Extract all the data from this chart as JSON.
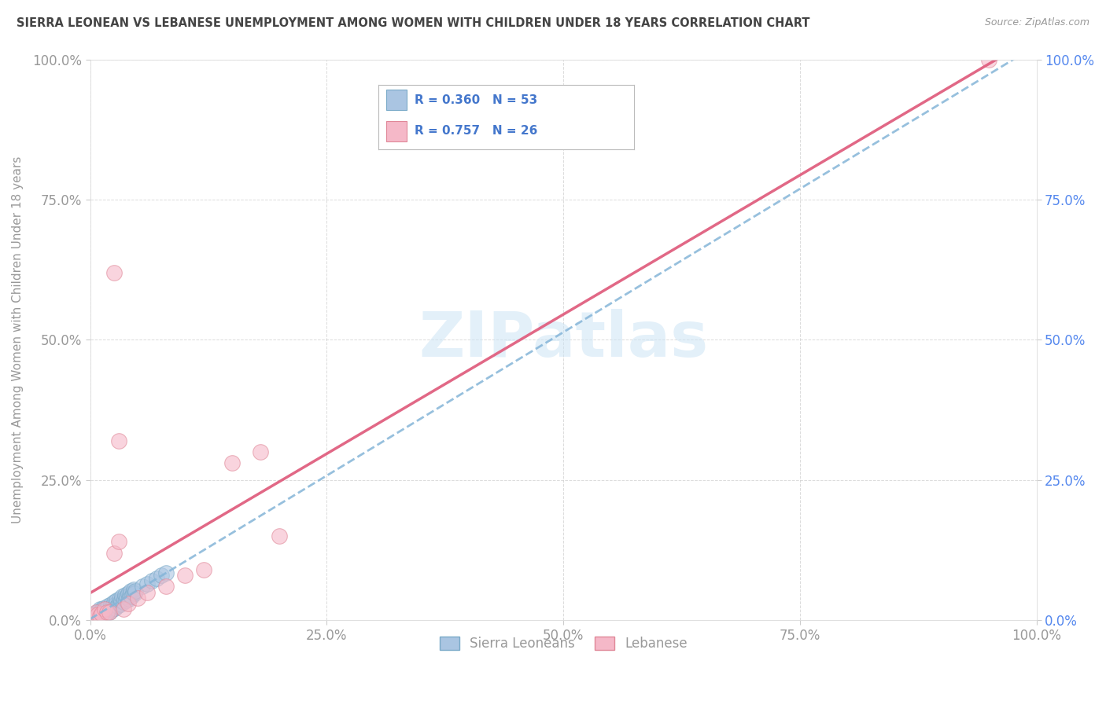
{
  "title": "SIERRA LEONEAN VS LEBANESE UNEMPLOYMENT AMONG WOMEN WITH CHILDREN UNDER 18 YEARS CORRELATION CHART",
  "source": "Source: ZipAtlas.com",
  "ylabel": "Unemployment Among Women with Children Under 18 years",
  "legend_entries": [
    {
      "label": "Sierra Leoneans",
      "R": 0.36,
      "N": 53,
      "color": "#aac5e2",
      "edge": "#7aaac8"
    },
    {
      "label": "Lebanese",
      "R": 0.757,
      "N": 26,
      "color": "#f5b8c8",
      "edge": "#e08898"
    }
  ],
  "watermark": "ZIPatlas",
  "sl_scatter_x": [
    0.002,
    0.003,
    0.004,
    0.005,
    0.006,
    0.007,
    0.008,
    0.009,
    0.01,
    0.011,
    0.012,
    0.013,
    0.014,
    0.015,
    0.016,
    0.017,
    0.018,
    0.019,
    0.02,
    0.021,
    0.022,
    0.023,
    0.024,
    0.025,
    0.026,
    0.027,
    0.028,
    0.029,
    0.03,
    0.031,
    0.032,
    0.033,
    0.034,
    0.035,
    0.036,
    0.037,
    0.038,
    0.039,
    0.04,
    0.041,
    0.042,
    0.043,
    0.044,
    0.045,
    0.046,
    0.047,
    0.048,
    0.055,
    0.06,
    0.065,
    0.07,
    0.075,
    0.08
  ],
  "sl_scatter_y": [
    0.005,
    0.01,
    0.008,
    0.012,
    0.006,
    0.015,
    0.01,
    0.008,
    0.02,
    0.012,
    0.018,
    0.014,
    0.022,
    0.016,
    0.012,
    0.02,
    0.018,
    0.025,
    0.015,
    0.022,
    0.028,
    0.018,
    0.025,
    0.032,
    0.022,
    0.028,
    0.035,
    0.025,
    0.03,
    0.038,
    0.028,
    0.035,
    0.042,
    0.032,
    0.038,
    0.045,
    0.035,
    0.042,
    0.048,
    0.038,
    0.045,
    0.052,
    0.042,
    0.05,
    0.055,
    0.048,
    0.052,
    0.06,
    0.065,
    0.07,
    0.075,
    0.08,
    0.085
  ],
  "lb_scatter_x": [
    0.002,
    0.003,
    0.004,
    0.005,
    0.006,
    0.008,
    0.01,
    0.012,
    0.015,
    0.018,
    0.02,
    0.025,
    0.03,
    0.035,
    0.04,
    0.05,
    0.06,
    0.08,
    0.1,
    0.12,
    0.15,
    0.18,
    0.2,
    0.025,
    0.03,
    0.95
  ],
  "lb_scatter_y": [
    0.005,
    0.008,
    0.006,
    0.01,
    0.015,
    0.01,
    0.008,
    0.012,
    0.02,
    0.015,
    0.015,
    0.12,
    0.14,
    0.02,
    0.03,
    0.04,
    0.05,
    0.06,
    0.08,
    0.09,
    0.28,
    0.3,
    0.15,
    0.62,
    0.32,
    1.0
  ],
  "sl_line_color": "#85b5d8",
  "lb_line_color": "#e06080",
  "background_color": "#ffffff",
  "grid_color": "#cccccc",
  "title_color": "#444444",
  "legend_text_color": "#4477cc",
  "axis_label_color": "#999999",
  "right_axis_color": "#5588ee",
  "tick_vals": [
    0,
    0.25,
    0.5,
    0.75,
    1.0
  ],
  "tick_labels": [
    "0.0%",
    "25.0%",
    "50.0%",
    "75.0%",
    "100.0%"
  ]
}
